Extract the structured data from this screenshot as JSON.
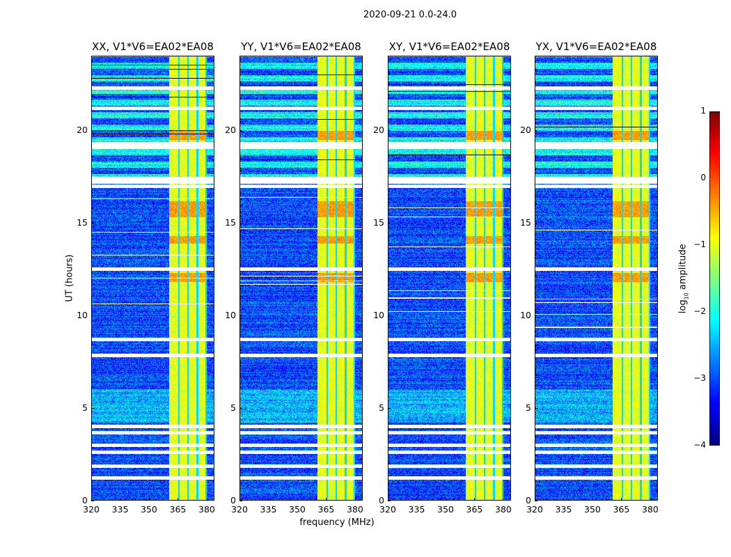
{
  "suptitle": "2020-09-21 0.0-24.0",
  "chart_data": {
    "type": "heatmap",
    "panels": [
      {
        "title": "XX, V1*V6=EA02*EA08"
      },
      {
        "title": "YY, V1*V6=EA02*EA08"
      },
      {
        "title": "XY, V1*V6=EA02*EA08"
      },
      {
        "title": "YX, V1*V6=EA02*EA08"
      }
    ],
    "xlabel": "frequency (MHz)",
    "ylabel": "UT (hours)",
    "xlim": [
      320,
      384
    ],
    "ylim": [
      0,
      24
    ],
    "xticks": [
      "320",
      "335",
      "350",
      "365",
      "380"
    ],
    "yticks": [
      "0",
      "5",
      "10",
      "15",
      "20"
    ],
    "colorbar": {
      "label_prefix": "log",
      "label_sub": "10",
      "label_suffix": " amplitude",
      "range": [
        -4,
        1
      ],
      "ticks": [
        "1",
        "0",
        "−1",
        "−2",
        "−3",
        "−4"
      ],
      "colormap": "jet"
    },
    "rfi_band_mhz": [
      360.5,
      380
    ],
    "background_level": -3,
    "rfi_level": -1,
    "flagged_ut_hours": [
      22.3,
      21.2,
      19.3,
      19.1,
      17.4,
      17.2,
      17.0,
      12.5,
      8.7,
      7.85,
      4.0,
      3.64,
      2.97,
      2.6,
      1.84,
      1.2
    ]
  }
}
